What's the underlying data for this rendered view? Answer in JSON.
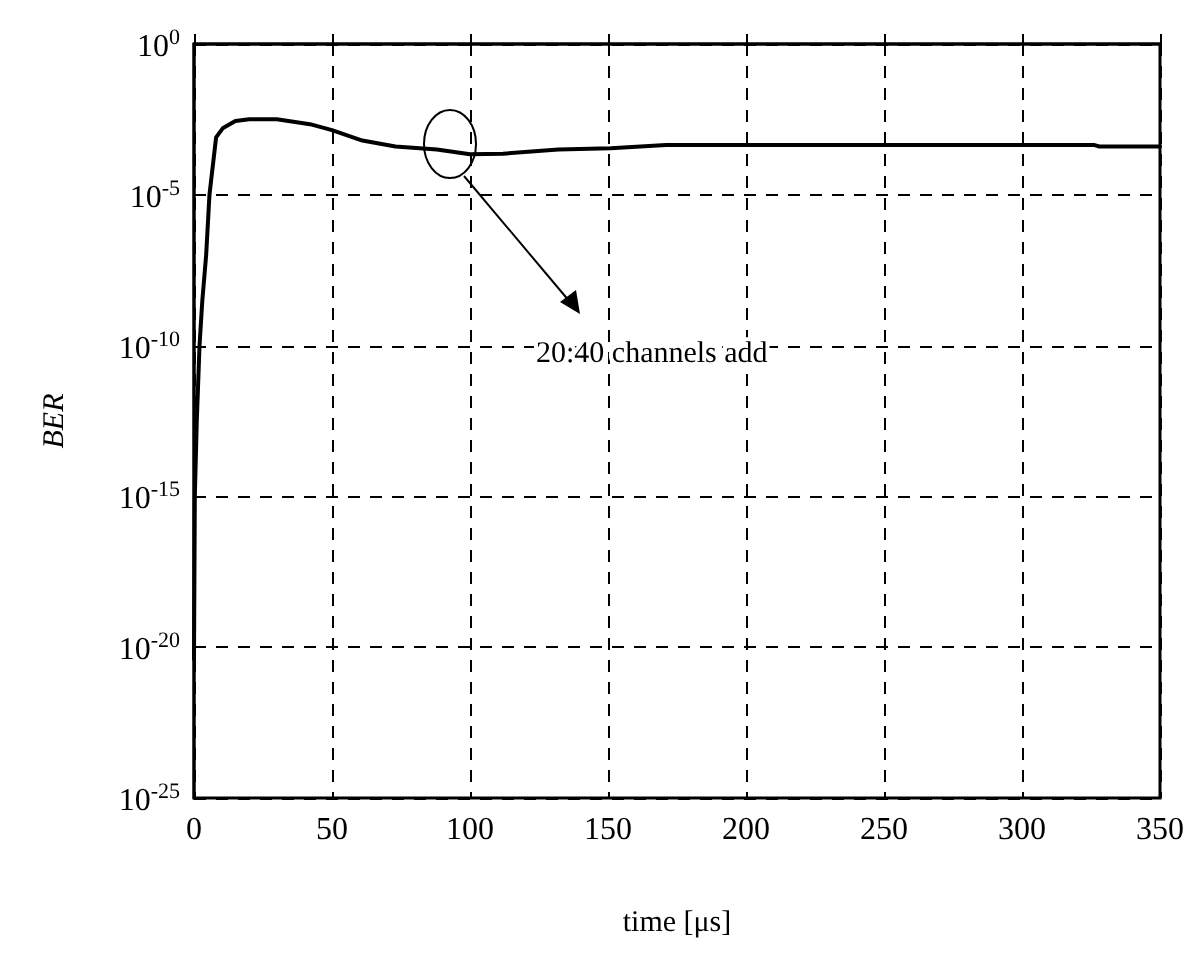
{
  "chart_data": {
    "type": "line",
    "xlabel": "time [μs]",
    "ylabel": "BER",
    "x": [
      0,
      0.3,
      1,
      2,
      3,
      4.4,
      5.6,
      8,
      10.4,
      15,
      20,
      30,
      42,
      50,
      61,
      73,
      88,
      100,
      112,
      132,
      151,
      171,
      200,
      250,
      300,
      326,
      328,
      350
    ],
    "series": [
      {
        "color": "#000000",
        "values": [
          4e-21,
          1e-15,
          3e-13,
          1e-10,
          3e-09,
          1e-07,
          1e-05,
          0.0008,
          0.0016,
          0.0028,
          0.0032,
          0.0032,
          0.0022,
          0.0014,
          0.00063,
          0.0004,
          0.00032,
          0.00022,
          0.00023,
          0.00032,
          0.00035,
          0.00045,
          0.00045,
          0.00045,
          0.00045,
          0.00045,
          0.0004,
          0.0004
        ]
      }
    ],
    "xlim": [
      0,
      350
    ],
    "xticks": [
      0,
      50,
      100,
      150,
      200,
      250,
      300,
      350
    ],
    "ylim": [
      1e-25,
      1
    ],
    "yticks": [
      {
        "value": 1,
        "label": "10$^{0}$"
      },
      {
        "value": 1e-05,
        "label": "10$^{-5}$"
      },
      {
        "value": 1e-10,
        "label": "10$^{-10}$"
      },
      {
        "value": 1e-15,
        "label": "10$^{-15}$"
      },
      {
        "value": 1e-20,
        "label": "10$^{-20}$"
      },
      {
        "value": 1e-25,
        "label": "10$^{-25}$"
      }
    ],
    "log": "y",
    "grid": true,
    "marker": "none",
    "line_style": "solid",
    "annotations": [
      "20:40 channels add"
    ]
  }
}
